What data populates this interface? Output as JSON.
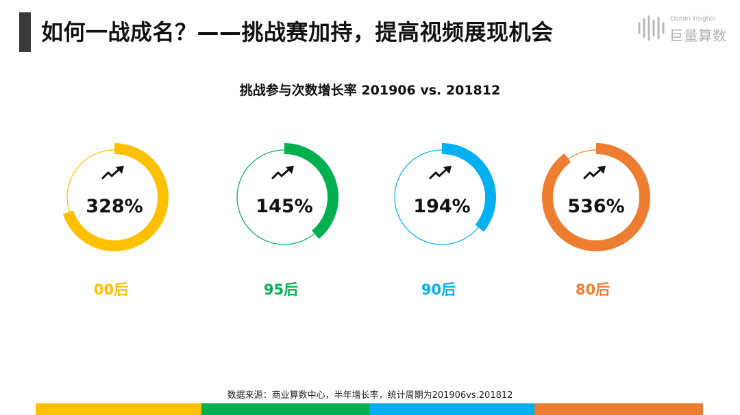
{
  "page": {
    "title": "如何一战成名？——挑战赛加持，提高视频展现机会",
    "logo_small": "Ocean insights",
    "logo_big": "巨量算数",
    "source": "数据来源：商业算数中心，半年增长率，统计周期为201906vs.201812"
  },
  "chart_data": {
    "type": "donut",
    "title": "挑战参与次数增长率 201906 vs. 201812",
    "unit": "%",
    "categories": [
      "00后",
      "95后",
      "90后",
      "80后"
    ],
    "values": [
      328,
      145,
      194,
      536
    ],
    "labels": [
      "328%",
      "145%",
      "194%",
      "536%"
    ],
    "arc_fraction": [
      0.7,
      0.39,
      0.36,
      0.9
    ],
    "colors": [
      "#FFC000",
      "#00B050",
      "#00B0F0",
      "#ED7D31"
    ],
    "icon": "trend-up-icon",
    "legend": "none",
    "grid": false
  },
  "bottom_bar": {
    "colors": [
      "#FFC000",
      "#00B050",
      "#00B0F0",
      "#ED7D31"
    ]
  }
}
